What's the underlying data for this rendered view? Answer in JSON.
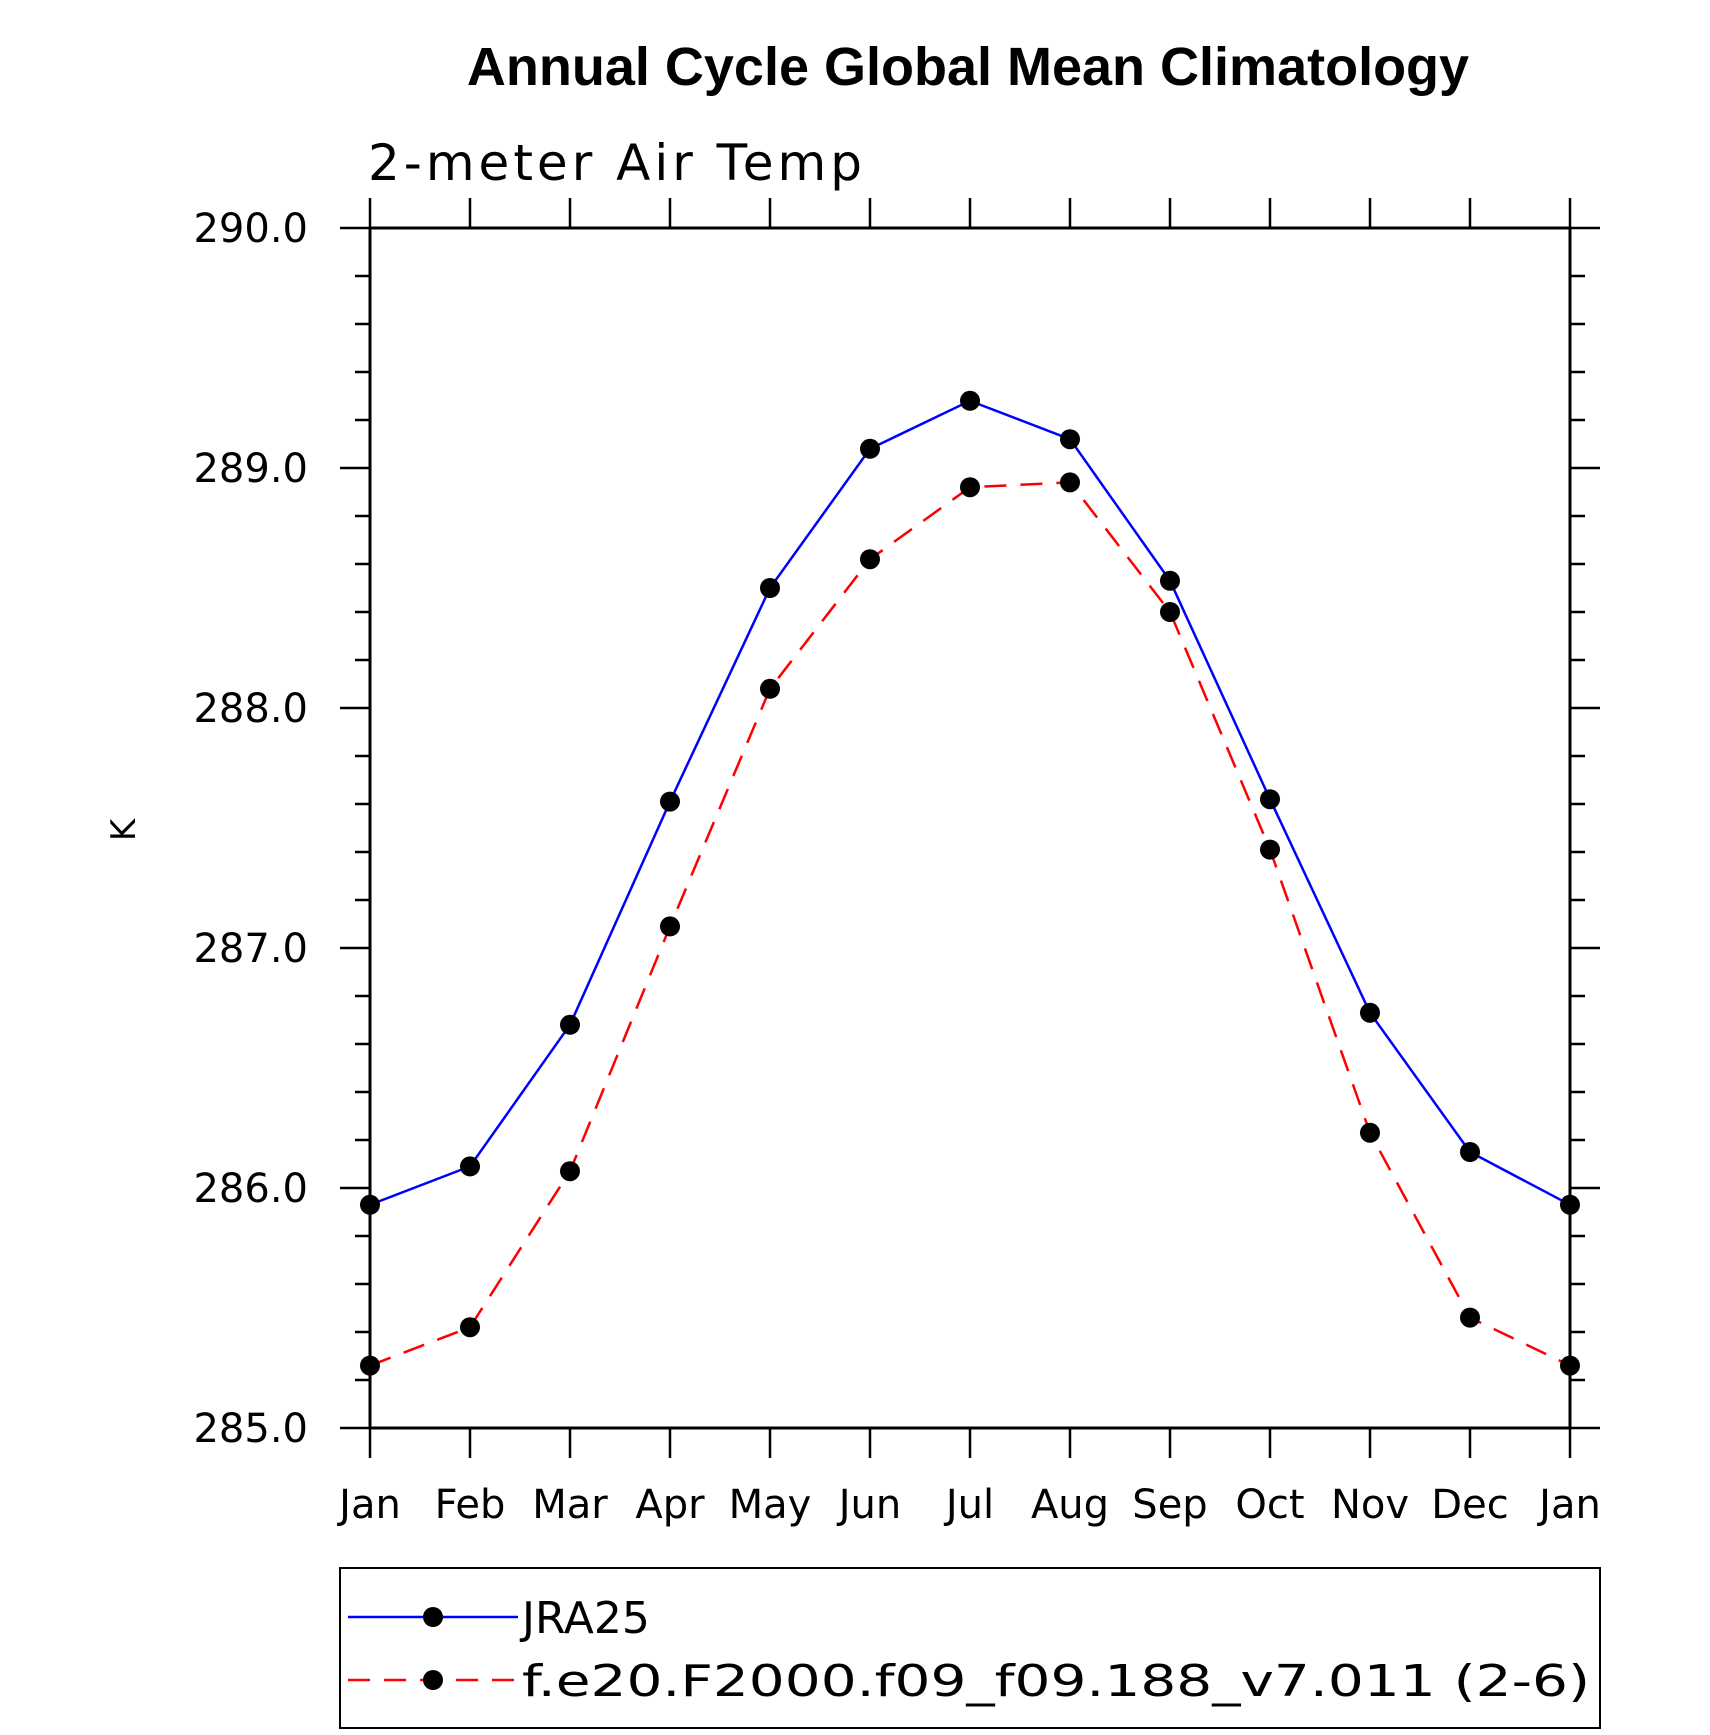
{
  "chart_data": {
    "type": "line",
    "title": "Annual Cycle Global Mean Climatology",
    "subtitle": "2-meter Air Temp",
    "xlabel": "",
    "ylabel": "K",
    "categories": [
      "Jan",
      "Feb",
      "Mar",
      "Apr",
      "May",
      "Jun",
      "Jul",
      "Aug",
      "Sep",
      "Oct",
      "Nov",
      "Dec",
      "Jan"
    ],
    "ylim": [
      285.0,
      290.0
    ],
    "yticks": [
      "285.0",
      "286.0",
      "287.0",
      "288.0",
      "289.0",
      "290.0"
    ],
    "grid": false,
    "legend_position": "bottom",
    "series": [
      {
        "name": "JRA25",
        "color": "#0000ff",
        "line_style": "solid",
        "marker": "circle",
        "values": [
          285.93,
          286.09,
          286.68,
          287.61,
          288.5,
          289.08,
          289.28,
          289.12,
          288.53,
          287.62,
          286.73,
          286.15,
          285.93
        ]
      },
      {
        "name": "f.e20.F2000.f09_f09.188_v7.011 (2-6)",
        "color": "#ff0000",
        "line_style": "dashed",
        "marker": "circle",
        "values": [
          285.26,
          285.42,
          286.07,
          287.09,
          288.08,
          288.62,
          288.92,
          288.94,
          288.4,
          287.41,
          286.23,
          285.46,
          285.26
        ]
      }
    ]
  }
}
